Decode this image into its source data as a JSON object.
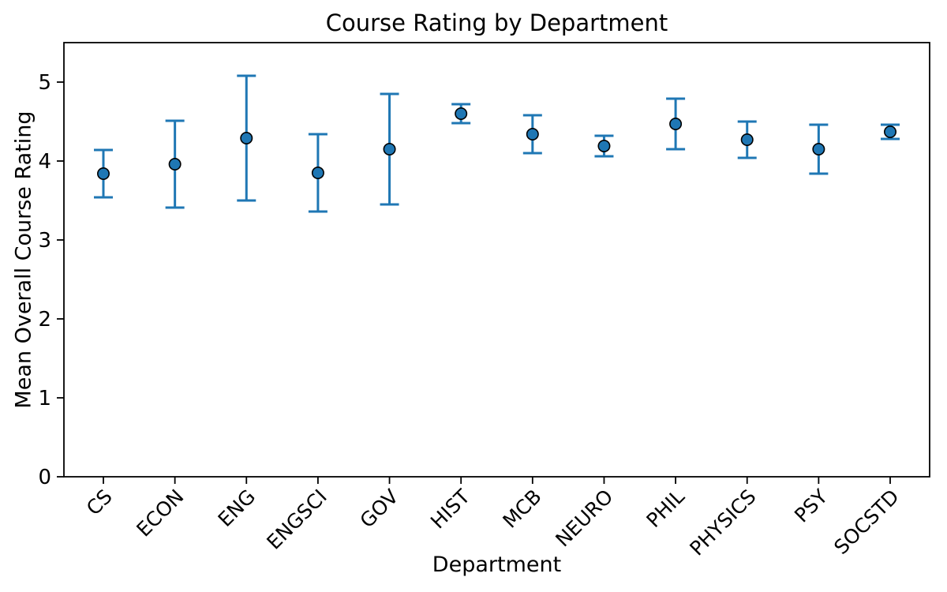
{
  "figure": {
    "background_color": "#ffffff"
  },
  "chart_data": {
    "type": "scatter",
    "subtype": "points-with-error-bars",
    "title": "Course Rating by Department",
    "xlabel": "Department",
    "ylabel": "Mean Overall Course Rating",
    "categories": [
      "CS",
      "ECON",
      "ENG",
      "ENGSCI",
      "GOV",
      "HIST",
      "MCB",
      "NEURO",
      "PHIL",
      "PHYSICS",
      "PSY",
      "SOCSTD"
    ],
    "series": [
      {
        "name": "Mean Overall Course Rating",
        "means": [
          3.84,
          3.96,
          4.29,
          3.85,
          4.15,
          4.6,
          4.34,
          4.19,
          4.47,
          4.27,
          4.15,
          4.37
        ],
        "errors": [
          0.3,
          0.55,
          0.79,
          0.49,
          0.7,
          0.12,
          0.24,
          0.13,
          0.32,
          0.23,
          0.31,
          0.09
        ]
      }
    ],
    "ylim": [
      0,
      5.5
    ],
    "yticks": [
      0,
      1,
      2,
      3,
      4,
      5
    ],
    "x_tick_rotation_deg": 45,
    "grid": false,
    "legend_position": "none",
    "marker_color": "#1f77b4",
    "marker_edge_color": "#000000",
    "errorbar_color": "#1f77b4",
    "axis_color": "#000000"
  }
}
